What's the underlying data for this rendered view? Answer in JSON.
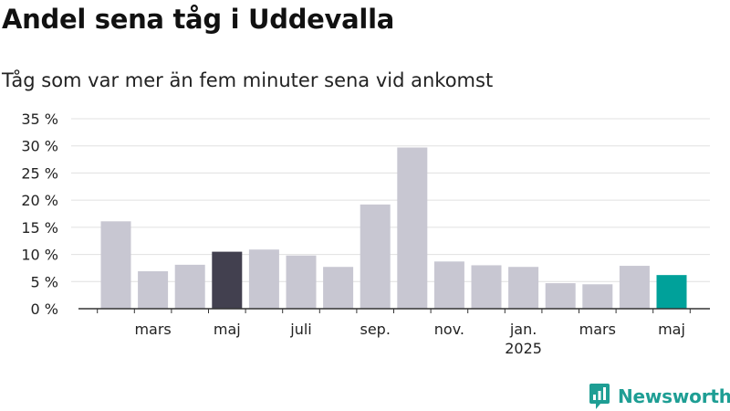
{
  "title": "Andel sena tåg i Uddevalla",
  "subtitle": "Tåg som var mer än fem minuter sena vid ankomst",
  "brand": {
    "name": "Newsworthy",
    "icon": "newsworthy-logo-icon"
  },
  "colors": {
    "bar_default": "#c8c7d2",
    "bar_highlight_dark": "#42404f",
    "bar_highlight_accent": "#00a19a",
    "grid": "#e0e0e0",
    "axis": "#333333",
    "brand": "#1e9e94"
  },
  "chart_data": {
    "type": "bar",
    "title": "Andel sena tåg i Uddevalla",
    "subtitle": "Tåg som var mer än fem minuter sena vid ankomst",
    "xlabel": "",
    "ylabel": "",
    "ylim": [
      0,
      35
    ],
    "y_ticks": [
      0,
      5,
      10,
      15,
      20,
      25,
      30,
      35
    ],
    "y_tick_labels": [
      "0 %",
      "5 %",
      "10 %",
      "15 %",
      "20 %",
      "25 %",
      "30 %",
      "35 %"
    ],
    "grid": true,
    "categories": [
      "2024-02",
      "2024-03",
      "2024-04",
      "2024-05",
      "2024-06",
      "2024-07",
      "2024-08",
      "2024-09",
      "2024-10",
      "2024-11",
      "2024-12",
      "2025-01",
      "2025-02",
      "2025-03",
      "2025-04",
      "2025-05"
    ],
    "values": [
      16.1,
      6.9,
      8.1,
      10.5,
      10.9,
      9.8,
      7.7,
      19.2,
      29.7,
      8.7,
      8.0,
      7.7,
      4.7,
      4.5,
      7.9,
      6.2
    ],
    "highlight": {
      "2024-05": "bar_highlight_dark",
      "2025-05": "bar_highlight_accent"
    },
    "x_tick_labels": [
      {
        "category": "2024-03",
        "label": "mars"
      },
      {
        "category": "2024-05",
        "label": "maj"
      },
      {
        "category": "2024-07",
        "label": "juli"
      },
      {
        "category": "2024-09",
        "label": "sep."
      },
      {
        "category": "2024-11",
        "label": "nov."
      },
      {
        "category": "2025-01",
        "label": "jan.",
        "sublabel": "2025"
      },
      {
        "category": "2025-03",
        "label": "mars"
      },
      {
        "category": "2025-05",
        "label": "maj"
      }
    ]
  }
}
